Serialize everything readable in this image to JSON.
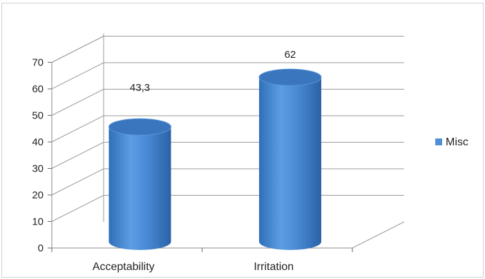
{
  "chart_data": {
    "type": "bar",
    "style": "3d-cylinder",
    "categories": [
      "Acceptability",
      "Irritation"
    ],
    "series": [
      {
        "name": "Misc",
        "values": [
          43.3,
          62
        ],
        "color": "#4f8fd6"
      }
    ],
    "data_labels": [
      "43,3",
      "62"
    ],
    "y_ticks": [
      "0",
      "10",
      "20",
      "30",
      "40",
      "50",
      "60",
      "70"
    ],
    "ylim": [
      0,
      70
    ],
    "grid": true,
    "legend_position": "right",
    "title": "",
    "xlabel": "",
    "ylabel": ""
  }
}
